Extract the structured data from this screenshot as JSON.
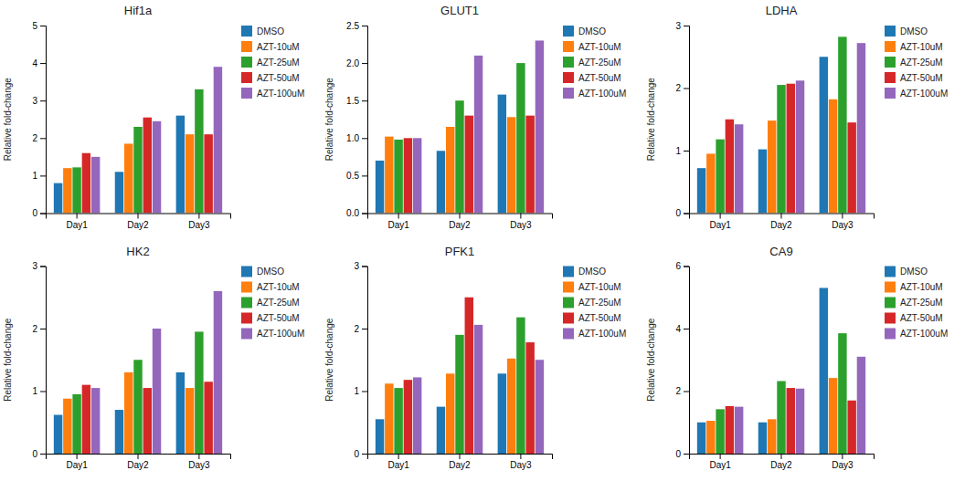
{
  "chart_data": [
    {
      "type": "bar",
      "title": "Hif1a",
      "ylabel": "Relative fold-change",
      "categories": [
        "Day1",
        "Day2",
        "Day3"
      ],
      "series": [
        {
          "name": "DMSO",
          "values": [
            0.8,
            1.1,
            2.6
          ]
        },
        {
          "name": "AZT-10uM",
          "values": [
            1.2,
            1.85,
            2.1
          ]
        },
        {
          "name": "AZT-25uM",
          "values": [
            1.22,
            2.3,
            3.3
          ]
        },
        {
          "name": "AZT-50uM",
          "values": [
            1.6,
            2.55,
            2.1
          ]
        },
        {
          "name": "AZT-100uM",
          "values": [
            1.5,
            2.45,
            3.9
          ]
        }
      ],
      "ylim": [
        0,
        5
      ],
      "yticks": [
        0,
        1,
        2,
        3,
        4,
        5
      ],
      "grid": false,
      "legend": "right"
    },
    {
      "type": "bar",
      "title": "GLUT1",
      "ylabel": "Relative fold-change",
      "categories": [
        "Day1",
        "Day2",
        "Day3"
      ],
      "series": [
        {
          "name": "DMSO",
          "values": [
            0.7,
            0.83,
            1.58
          ]
        },
        {
          "name": "AZT-10uM",
          "values": [
            1.02,
            1.15,
            1.28
          ]
        },
        {
          "name": "AZT-25uM",
          "values": [
            0.98,
            1.5,
            2.0
          ]
        },
        {
          "name": "AZT-50uM",
          "values": [
            1.0,
            1.3,
            1.3
          ]
        },
        {
          "name": "AZT-100uM",
          "values": [
            1.0,
            2.1,
            2.3
          ]
        }
      ],
      "ylim": [
        0,
        2.5
      ],
      "yticks": [
        {
          "value": 0,
          "label": "0.0"
        },
        0.5,
        {
          "value": 1,
          "label": "1.0"
        },
        1.5,
        {
          "value": 2,
          "label": "2.0"
        },
        2.5
      ],
      "grid": false,
      "legend": "right"
    },
    {
      "type": "bar",
      "title": "LDHA",
      "ylabel": "Relative fold-change",
      "categories": [
        "Day1",
        "Day2",
        "Day3"
      ],
      "series": [
        {
          "name": "DMSO",
          "values": [
            0.72,
            1.02,
            2.5
          ]
        },
        {
          "name": "AZT-10uM",
          "values": [
            0.95,
            1.48,
            1.82
          ]
        },
        {
          "name": "AZT-25uM",
          "values": [
            1.18,
            2.05,
            2.82
          ]
        },
        {
          "name": "AZT-50uM",
          "values": [
            1.5,
            2.07,
            1.45
          ]
        },
        {
          "name": "AZT-100uM",
          "values": [
            1.42,
            2.12,
            2.72
          ]
        }
      ],
      "ylim": [
        0,
        3
      ],
      "yticks": [
        0,
        1,
        2,
        3
      ],
      "grid": false,
      "legend": "right"
    },
    {
      "type": "bar",
      "title": "HK2",
      "ylabel": "Relative fold-change",
      "categories": [
        "Day1",
        "Day2",
        "Day3"
      ],
      "series": [
        {
          "name": "DMSO",
          "values": [
            0.62,
            0.7,
            1.3
          ]
        },
        {
          "name": "AZT-10uM",
          "values": [
            0.88,
            1.3,
            1.05
          ]
        },
        {
          "name": "AZT-25uM",
          "values": [
            0.95,
            1.5,
            1.95
          ]
        },
        {
          "name": "AZT-50uM",
          "values": [
            1.1,
            1.05,
            1.15
          ]
        },
        {
          "name": "AZT-100uM",
          "values": [
            1.05,
            2.0,
            2.6
          ]
        }
      ],
      "ylim": [
        0,
        3
      ],
      "yticks": [
        0,
        1,
        2,
        3
      ],
      "grid": false,
      "legend": "right"
    },
    {
      "type": "bar",
      "title": "PFK1",
      "ylabel": "Relative fold-change",
      "categories": [
        "Day1",
        "Day2",
        "Day3"
      ],
      "series": [
        {
          "name": "DMSO",
          "values": [
            0.55,
            0.75,
            1.28
          ]
        },
        {
          "name": "AZT-10uM",
          "values": [
            1.12,
            1.28,
            1.52
          ]
        },
        {
          "name": "AZT-25uM",
          "values": [
            1.05,
            1.9,
            2.18
          ]
        },
        {
          "name": "AZT-50uM",
          "values": [
            1.18,
            2.5,
            1.78
          ]
        },
        {
          "name": "AZT-100uM",
          "values": [
            1.22,
            2.06,
            1.5
          ]
        }
      ],
      "ylim": [
        0,
        3
      ],
      "yticks": [
        0,
        1,
        2,
        3
      ],
      "grid": false,
      "legend": "right"
    },
    {
      "type": "bar",
      "title": "CA9",
      "ylabel": "Relative fold-change",
      "categories": [
        "Day1",
        "Day2",
        "Day3"
      ],
      "series": [
        {
          "name": "DMSO",
          "values": [
            1.0,
            1.0,
            5.3
          ]
        },
        {
          "name": "AZT-10uM",
          "values": [
            1.05,
            1.1,
            2.42
          ]
        },
        {
          "name": "AZT-25uM",
          "values": [
            1.42,
            2.32,
            3.85
          ]
        },
        {
          "name": "AZT-50uM",
          "values": [
            1.52,
            2.1,
            1.7
          ]
        },
        {
          "name": "AZT-100uM",
          "values": [
            1.5,
            2.08,
            3.1
          ]
        }
      ],
      "ylim": [
        0,
        6
      ],
      "yticks": [
        0,
        2,
        4,
        6
      ],
      "grid": false,
      "legend": "right"
    }
  ]
}
